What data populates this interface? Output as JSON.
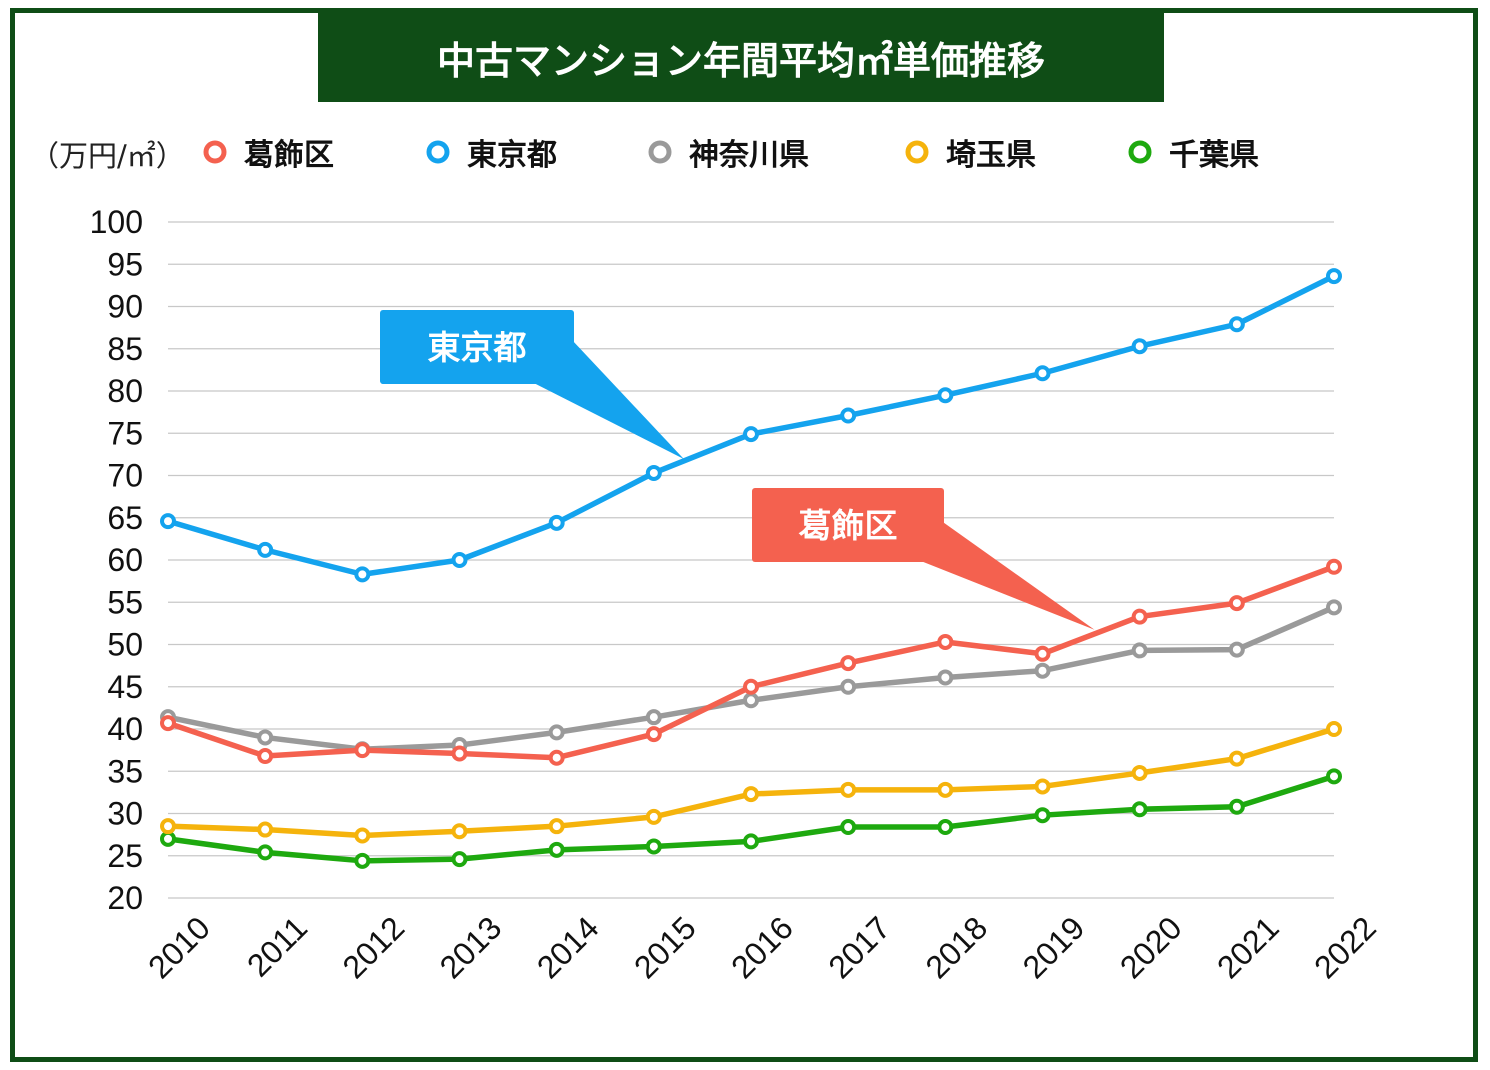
{
  "title": "中古マンション年間平均㎡単価推移",
  "unit_label": "（万円/㎡）",
  "chart_data": {
    "type": "line",
    "title": "中古マンション年間平均㎡単価推移",
    "ylabel": "（万円/㎡）",
    "xlabel": "",
    "x": [
      "2010",
      "2011",
      "2012",
      "2013",
      "2014",
      "2015",
      "2016",
      "2017",
      "2018",
      "2019",
      "2020",
      "2021",
      "2022"
    ],
    "ylim": [
      20,
      100
    ],
    "yticks": [
      20,
      25,
      30,
      35,
      40,
      45,
      50,
      55,
      60,
      65,
      70,
      75,
      80,
      85,
      90,
      95,
      100
    ],
    "grid": true,
    "legend_position": "top",
    "series": [
      {
        "name": "葛飾区",
        "color": "#f4614f",
        "values": [
          40.7,
          36.8,
          37.5,
          37.1,
          36.6,
          39.4,
          45.0,
          47.8,
          50.3,
          48.9,
          53.3,
          54.9,
          59.2
        ]
      },
      {
        "name": "東京都",
        "color": "#14a3ee",
        "values": [
          64.6,
          61.2,
          58.3,
          60.0,
          64.4,
          70.3,
          74.9,
          77.1,
          79.5,
          82.1,
          85.3,
          87.9,
          93.6
        ]
      },
      {
        "name": "神奈川県",
        "color": "#9a9a9a",
        "values": [
          41.4,
          39.0,
          37.6,
          38.1,
          39.6,
          41.4,
          43.4,
          45.0,
          46.1,
          46.9,
          49.3,
          49.4,
          54.4
        ]
      },
      {
        "name": "埼玉県",
        "color": "#f5b30c",
        "values": [
          28.5,
          28.1,
          27.4,
          27.9,
          28.5,
          29.6,
          32.3,
          32.8,
          32.8,
          33.2,
          34.8,
          36.5,
          40.0
        ]
      },
      {
        "name": "千葉県",
        "color": "#1ea90f",
        "values": [
          27.0,
          25.4,
          24.4,
          24.6,
          25.7,
          26.1,
          26.7,
          28.4,
          28.4,
          29.8,
          30.5,
          30.8,
          34.4
        ]
      }
    ],
    "annotations": [
      {
        "label": "東京都",
        "color": "#14a3ee",
        "points_to": "2015"
      },
      {
        "label": "葛飾区",
        "color": "#f4614f",
        "points_to": "2019"
      }
    ]
  }
}
